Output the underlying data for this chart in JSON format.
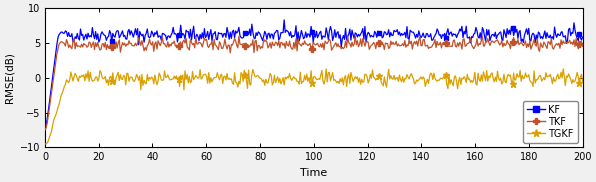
{
  "title": "",
  "xlabel": "Time",
  "ylabel": "RMSE(dB)",
  "xlim": [
    0,
    200
  ],
  "ylim": [
    -10,
    10
  ],
  "yticks": [
    -10,
    -5,
    0,
    5,
    10
  ],
  "xticks": [
    0,
    20,
    40,
    60,
    80,
    100,
    120,
    140,
    160,
    180,
    200
  ],
  "kf_color": "#0000FF",
  "tkf_color": "#C0522A",
  "tgkf_color": "#DAA000",
  "legend_labels": [
    "KF",
    "TKF",
    "TGKF"
  ],
  "kf_marker": "s",
  "tkf_marker": "P",
  "tgkf_marker": "*",
  "kf_level": 6.2,
  "tkf_level": 4.8,
  "tgkf_level": -0.15,
  "kf_noise": 0.55,
  "tkf_noise": 0.45,
  "tgkf_noise": 0.55,
  "n_points": 500,
  "seed": 42,
  "figsize": [
    5.96,
    1.82
  ],
  "dpi": 100,
  "bg_color": "#F0F0F0",
  "axes_bg": "#FFFFFF",
  "marker_every": 25
}
